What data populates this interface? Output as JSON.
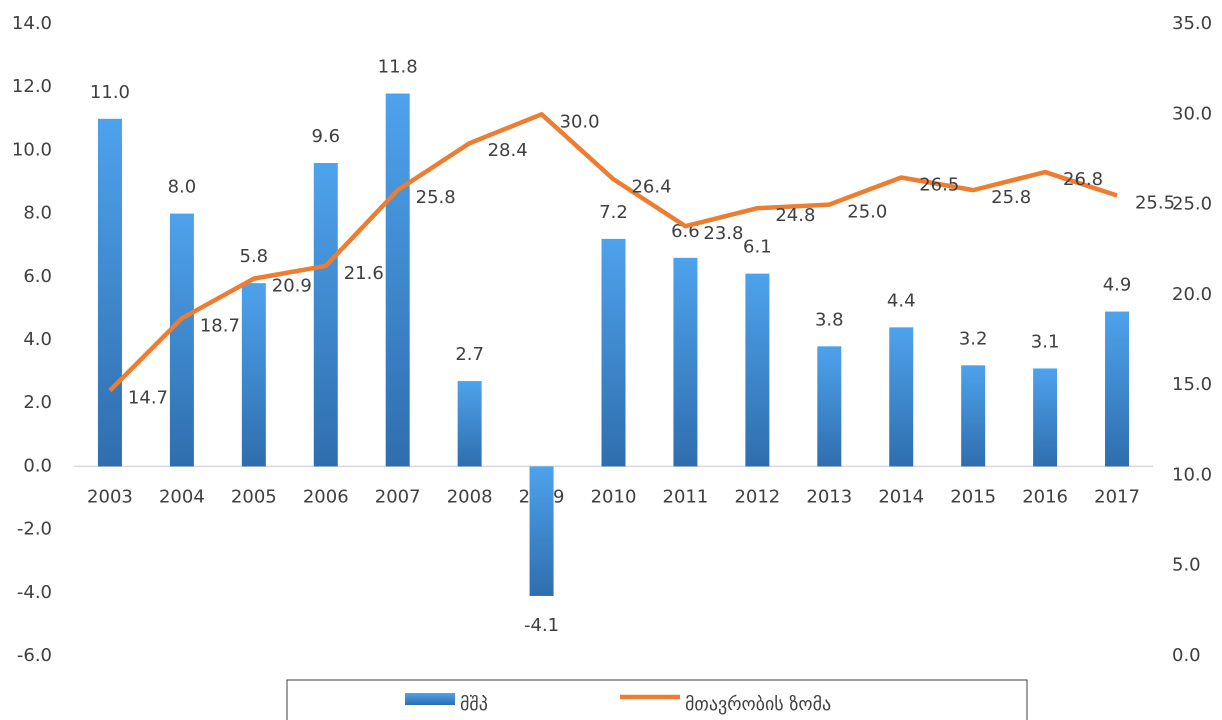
{
  "chart_data": {
    "type": "bar_line",
    "categories": [
      "2003",
      "2004",
      "2005",
      "2006",
      "2007",
      "2008",
      "2009",
      "2010",
      "2011",
      "2012",
      "2013",
      "2014",
      "2015",
      "2016",
      "2017"
    ],
    "series": [
      {
        "name": "მშპ",
        "type": "bar",
        "color": "#3f8fdc",
        "values": [
          11.0,
          8.0,
          5.8,
          9.6,
          11.8,
          2.7,
          -4.1,
          7.2,
          6.6,
          6.1,
          3.8,
          4.4,
          3.2,
          3.1,
          4.9
        ],
        "value_labels": [
          "11.0",
          "8.0",
          "5.8",
          "9.6",
          "11.8",
          "2.7",
          "-4.1",
          "7.2",
          "6.6",
          "6.1",
          "3.8",
          "4.4",
          "3.2",
          "3.1",
          "4.9"
        ]
      },
      {
        "name": "მთავრობის ზომა",
        "type": "line",
        "axis": "y2",
        "color": "#ed7d31",
        "values": [
          14.7,
          18.7,
          20.9,
          21.6,
          25.8,
          28.4,
          30.0,
          26.4,
          23.8,
          24.8,
          25.0,
          26.5,
          25.8,
          26.8,
          25.5
        ],
        "value_labels": [
          "14.7",
          "18.7",
          "20.9",
          "21.6",
          "25.8",
          "28.4",
          "30.0",
          "26.4",
          "23.8",
          "24.8",
          "25.0",
          "26.5",
          "25.8",
          "26.8",
          "25.5"
        ]
      }
    ],
    "ylim": [
      -6,
      14
    ],
    "yticks": [
      {
        "value": -6,
        "label": "-6.0"
      },
      {
        "value": -4,
        "label": "-4.0"
      },
      {
        "value": -2,
        "label": "-2.0"
      },
      {
        "value": 0,
        "label": "0.0"
      },
      {
        "value": 2,
        "label": "2.0"
      },
      {
        "value": 4,
        "label": "4.0"
      },
      {
        "value": 6,
        "label": "6.0"
      },
      {
        "value": 8,
        "label": "8.0"
      },
      {
        "value": 10,
        "label": "10.0"
      },
      {
        "value": 12,
        "label": "12.0"
      },
      {
        "value": 14,
        "label": "14.0"
      }
    ],
    "y2lim": [
      0,
      35
    ],
    "y2ticks": [
      {
        "value": 0,
        "label": "0.0"
      },
      {
        "value": 5,
        "label": "5.0"
      },
      {
        "value": 10,
        "label": "10.0"
      },
      {
        "value": 15,
        "label": "15.0"
      },
      {
        "value": 20,
        "label": "20.0"
      },
      {
        "value": 25,
        "label": "25.0"
      },
      {
        "value": 30,
        "label": "30.0"
      },
      {
        "value": 35,
        "label": "35.0"
      }
    ],
    "grid": false,
    "legend": "bottom"
  }
}
